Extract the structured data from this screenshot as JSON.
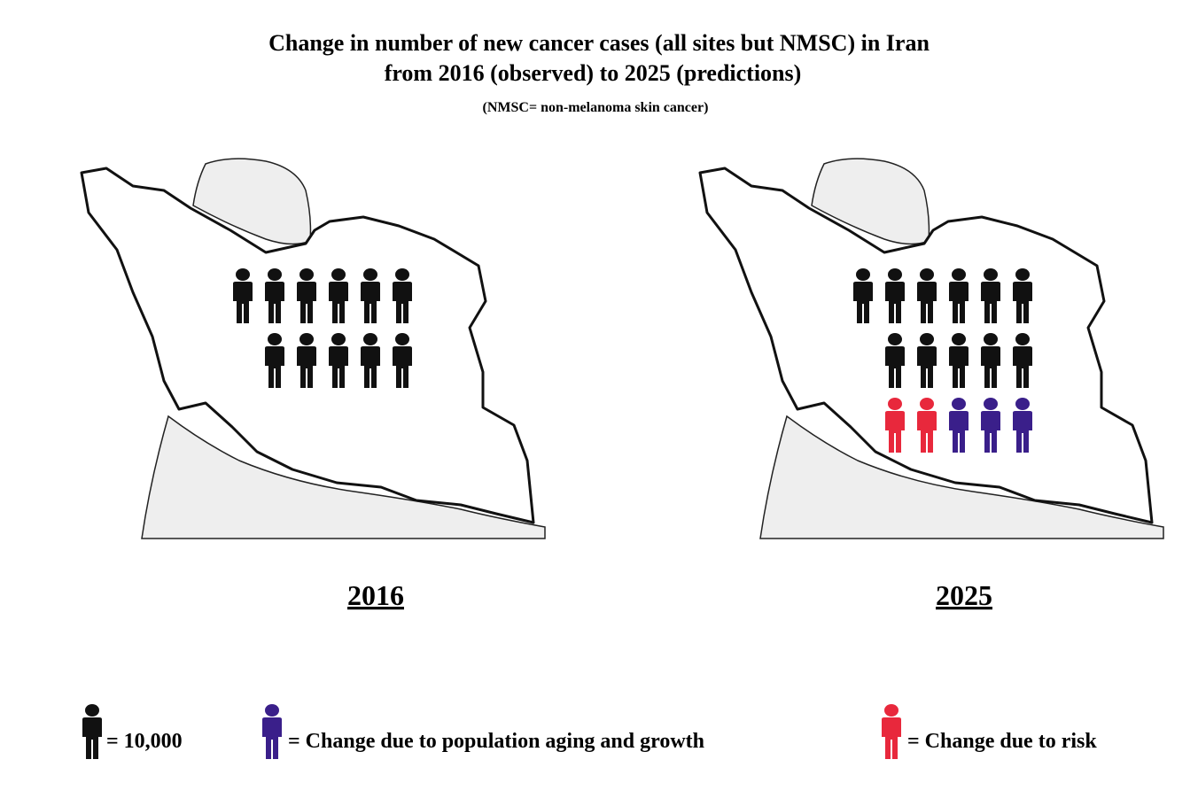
{
  "header": {
    "title_line1": "Change in number of new cancer cases (all sites but NMSC) in Iran",
    "title_line2": "from 2016 (observed) to 2025 (predictions)",
    "subtitle": "(NMSC= non-melanoma skin cancer)"
  },
  "panels": [
    {
      "label": "2016",
      "groups": [
        {
          "color": "#111111",
          "count": 11
        }
      ]
    },
    {
      "label": "2025",
      "groups": [
        {
          "color": "#111111",
          "count": 11
        },
        {
          "color": "#e8283c",
          "count": 2
        },
        {
          "color": "#3a1f8a",
          "count": 3
        }
      ]
    }
  ],
  "legend": [
    {
      "color": "#111111",
      "label": "= 10,000"
    },
    {
      "color": "#3a1f8a",
      "label": "= Change due to population aging and growth"
    },
    {
      "color": "#e8283c",
      "label": "= Change due to risk"
    }
  ]
}
